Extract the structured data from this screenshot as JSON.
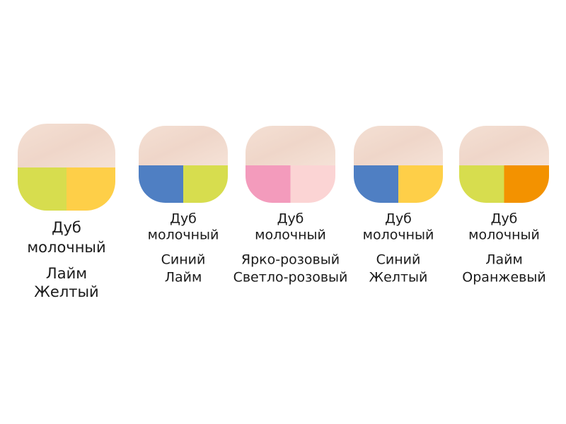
{
  "swatches": [
    {
      "name": [
        "Дуб",
        "молочный"
      ],
      "colors": [
        "Лайм",
        "Желтый"
      ]
    },
    {
      "name": [
        "Дуб",
        "молочный"
      ],
      "colors": [
        "Синий",
        "Лайм"
      ]
    },
    {
      "name": [
        "Дуб",
        "молочный"
      ],
      "colors": [
        "Ярко-розовый",
        "Светло-розовый"
      ]
    },
    {
      "name": [
        "Дуб",
        "молочный"
      ],
      "colors": [
        "Синий",
        "Желтый"
      ]
    },
    {
      "name": [
        "Дуб",
        "молочный"
      ],
      "colors": [
        "Лайм",
        "Оранжевый"
      ]
    }
  ]
}
